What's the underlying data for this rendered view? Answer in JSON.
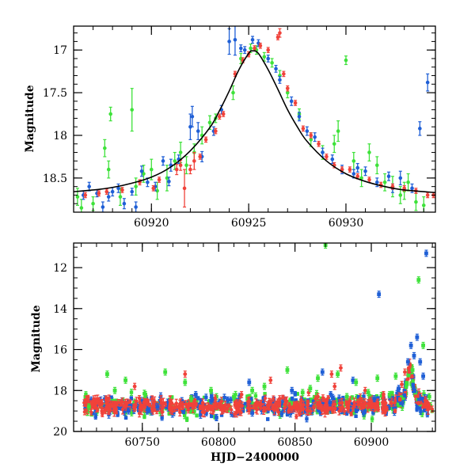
{
  "colors": {
    "blue": "#1f5fd6",
    "red": "#f0423a",
    "green": "#3ee23a",
    "model": "#000000"
  },
  "chart_data": [
    {
      "type": "scatter",
      "panel": "top",
      "title": "",
      "xlabel": "",
      "ylabel": "Magnitude",
      "xlim": [
        60916,
        60934.6
      ],
      "ylim": [
        18.9,
        16.72
      ],
      "y_inverted": true,
      "grid": false,
      "x_ticks": [
        60920,
        60925,
        60930
      ],
      "y_ticks": [
        17,
        17.5,
        18,
        18.5
      ],
      "x_minor_step": 1,
      "y_minor_step": 0.1,
      "model_curve": {
        "name": "",
        "x": [
          60916,
          60917,
          60918,
          60919,
          60920,
          60921,
          60922,
          60923,
          60923.5,
          60924,
          60924.5,
          60925,
          60925.2,
          60925.5,
          60926,
          60926.5,
          60927,
          60927.5,
          60928,
          60929,
          60930,
          60931,
          60932,
          60933,
          60934.6
        ],
        "y": [
          18.66,
          18.64,
          18.61,
          18.56,
          18.49,
          18.37,
          18.18,
          17.91,
          17.71,
          17.48,
          17.23,
          17.04,
          17.01,
          17.04,
          17.23,
          17.46,
          17.7,
          17.9,
          18.07,
          18.3,
          18.45,
          18.54,
          18.6,
          18.64,
          18.67
        ]
      },
      "series": [
        {
          "color": "blue",
          "points": [
            [
              60916.5,
              18.7,
              0.05
            ],
            [
              60917.2,
              18.68,
              0.04
            ],
            [
              60917.8,
              18.72,
              0.05
            ],
            [
              60918.3,
              18.62,
              0.05
            ],
            [
              60918.6,
              18.8,
              0.06
            ],
            [
              60919.0,
              18.66,
              0.04
            ],
            [
              60919.5,
              18.42,
              0.06
            ],
            [
              60919.8,
              18.55,
              0.05
            ],
            [
              60920.2,
              18.6,
              0.05
            ],
            [
              60920.6,
              18.3,
              0.05
            ],
            [
              60921.0,
              18.35,
              0.07
            ],
            [
              60921.4,
              18.28,
              0.05
            ],
            [
              60922.0,
              17.9,
              0.15
            ],
            [
              60922.1,
              17.78,
              0.12
            ],
            [
              60922.4,
              17.95,
              0.1
            ],
            [
              60922.6,
              18.25,
              0.06
            ],
            [
              60923.2,
              17.95,
              0.05
            ],
            [
              60923.6,
              17.7,
              0.05
            ],
            [
              60924.0,
              16.9,
              0.15
            ],
            [
              60924.3,
              16.88,
              0.18
            ],
            [
              60924.8,
              17.0,
              0.04
            ],
            [
              60925.2,
              16.88,
              0.04
            ],
            [
              60925.5,
              16.92,
              0.04
            ],
            [
              60926.0,
              17.1,
              0.04
            ],
            [
              60926.4,
              17.22,
              0.04
            ],
            [
              60926.6,
              17.35,
              0.04
            ],
            [
              60927.2,
              17.6,
              0.05
            ],
            [
              60927.6,
              17.78,
              0.05
            ],
            [
              60928.0,
              17.95,
              0.05
            ],
            [
              60928.4,
              18.02,
              0.05
            ],
            [
              60928.8,
              18.2,
              0.05
            ],
            [
              60929.3,
              18.28,
              0.05
            ],
            [
              60929.8,
              18.4,
              0.05
            ],
            [
              60930.4,
              18.45,
              0.05
            ],
            [
              60931.0,
              18.42,
              0.05
            ],
            [
              60931.6,
              18.55,
              0.05
            ],
            [
              60932.2,
              18.48,
              0.05
            ],
            [
              60932.8,
              18.5,
              0.08
            ],
            [
              60933.4,
              18.62,
              0.05
            ],
            [
              60933.8,
              17.92,
              0.08
            ],
            [
              60934.2,
              17.38,
              0.1
            ],
            [
              60916.8,
              18.6,
              0.05
            ],
            [
              60918.0,
              18.66,
              0.05
            ],
            [
              60920.9,
              18.54,
              0.05
            ],
            [
              60924.6,
              16.98,
              0.04
            ],
            [
              60930.6,
              18.38,
              0.05
            ],
            [
              60932.4,
              18.62,
              0.05
            ],
            [
              60917.5,
              18.84,
              0.06
            ],
            [
              60919.2,
              18.84,
              0.06
            ]
          ]
        },
        {
          "color": "red",
          "points": [
            [
              60916.6,
              18.7,
              0.03
            ],
            [
              60917.3,
              18.68,
              0.03
            ],
            [
              60917.7,
              18.66,
              0.03
            ],
            [
              60918.5,
              18.64,
              0.03
            ],
            [
              60919.4,
              18.55,
              0.03
            ],
            [
              60920.1,
              18.62,
              0.03
            ],
            [
              60920.4,
              18.52,
              0.03
            ],
            [
              60921.3,
              18.4,
              0.06
            ],
            [
              60921.5,
              18.35,
              0.06
            ],
            [
              60921.7,
              18.62,
              0.22
            ],
            [
              60922.0,
              18.4,
              0.05
            ],
            [
              60922.2,
              18.3,
              0.1
            ],
            [
              60922.5,
              18.25,
              0.03
            ],
            [
              60922.8,
              18.05,
              0.03
            ],
            [
              60923.3,
              17.95,
              0.03
            ],
            [
              60923.5,
              17.78,
              0.03
            ],
            [
              60923.7,
              17.75,
              0.03
            ],
            [
              60924.3,
              17.28,
              0.03
            ],
            [
              60924.7,
              17.12,
              0.03
            ],
            [
              60925.0,
              17.05,
              0.03
            ],
            [
              60925.3,
              16.98,
              0.03
            ],
            [
              60925.6,
              16.95,
              0.03
            ],
            [
              60926.0,
              17.0,
              0.03
            ],
            [
              60926.6,
              16.8,
              0.05
            ],
            [
              60926.8,
              17.28,
              0.03
            ],
            [
              60927.0,
              17.45,
              0.03
            ],
            [
              60927.4,
              17.62,
              0.03
            ],
            [
              60927.8,
              17.92,
              0.03
            ],
            [
              60928.2,
              18.0,
              0.03
            ],
            [
              60928.6,
              18.1,
              0.03
            ],
            [
              60929.0,
              18.25,
              0.03
            ],
            [
              60929.4,
              18.35,
              0.03
            ],
            [
              60929.8,
              18.4,
              0.03
            ],
            [
              60930.2,
              18.4,
              0.03
            ],
            [
              60930.6,
              18.48,
              0.03
            ],
            [
              60931.2,
              18.52,
              0.03
            ],
            [
              60931.8,
              18.58,
              0.03
            ],
            [
              60932.4,
              18.6,
              0.03
            ],
            [
              60933.0,
              18.62,
              0.03
            ],
            [
              60933.6,
              18.65,
              0.03
            ],
            [
              60934.2,
              18.7,
              0.03
            ],
            [
              60934.5,
              18.7,
              0.03
            ],
            [
              60926.5,
              16.85,
              0.03
            ]
          ]
        },
        {
          "color": "green",
          "points": [
            [
              60916.2,
              18.72,
              0.1
            ],
            [
              60916.4,
              18.85,
              0.1
            ],
            [
              60917.0,
              18.8,
              0.08
            ],
            [
              60917.6,
              18.15,
              0.1
            ],
            [
              60917.8,
              18.4,
              0.1
            ],
            [
              60917.9,
              17.75,
              0.08
            ],
            [
              60918.4,
              18.72,
              0.1
            ],
            [
              60919.0,
              17.7,
              0.25
            ],
            [
              60919.2,
              18.6,
              0.1
            ],
            [
              60919.6,
              18.45,
              0.1
            ],
            [
              60920.0,
              18.4,
              0.12
            ],
            [
              60920.3,
              18.65,
              0.1
            ],
            [
              60920.8,
              18.5,
              0.15
            ],
            [
              60921.2,
              18.3,
              0.1
            ],
            [
              60921.5,
              18.2,
              0.12
            ],
            [
              60921.8,
              18.35,
              0.1
            ],
            [
              60922.2,
              18.2,
              0.1
            ],
            [
              60922.6,
              18.0,
              0.1
            ],
            [
              60923.0,
              17.85,
              0.08
            ],
            [
              60923.3,
              17.8,
              0.05
            ],
            [
              60924.2,
              17.5,
              0.08
            ],
            [
              60924.6,
              17.1,
              0.06
            ],
            [
              60925.1,
              16.98,
              0.05
            ],
            [
              60925.4,
              17.0,
              0.05
            ],
            [
              60925.8,
              17.08,
              0.05
            ],
            [
              60926.2,
              17.15,
              0.05
            ],
            [
              60926.6,
              17.3,
              0.06
            ],
            [
              60927.0,
              17.5,
              0.06
            ],
            [
              60927.6,
              17.75,
              0.06
            ],
            [
              60928.2,
              18.05,
              0.08
            ],
            [
              60928.8,
              18.2,
              0.08
            ],
            [
              60929.4,
              18.1,
              0.1
            ],
            [
              60929.6,
              17.95,
              0.12
            ],
            [
              60930.0,
              17.12,
              0.05
            ],
            [
              60930.4,
              18.3,
              0.1
            ],
            [
              60930.8,
              18.5,
              0.1
            ],
            [
              60931.2,
              18.2,
              0.1
            ],
            [
              60931.6,
              18.35,
              0.1
            ],
            [
              60932.0,
              18.55,
              0.1
            ],
            [
              60932.4,
              18.6,
              0.12
            ],
            [
              60932.8,
              18.7,
              0.1
            ],
            [
              60933.2,
              18.55,
              0.1
            ],
            [
              60933.6,
              18.78,
              0.1
            ],
            [
              60934.0,
              18.82,
              0.1
            ],
            [
              60933.0,
              18.65,
              0.1
            ]
          ]
        }
      ]
    },
    {
      "type": "scatter",
      "panel": "bottom",
      "title": "",
      "xlabel": "HJD−2400000",
      "ylabel": "Magnitude",
      "xlim": [
        60705,
        60942
      ],
      "ylim": [
        20,
        10.8
      ],
      "y_inverted": true,
      "grid": false,
      "x_ticks": [
        60750,
        60800,
        60850,
        60900
      ],
      "y_ticks": [
        12,
        14,
        16,
        18,
        20
      ],
      "x_minor_step": 10,
      "y_minor_step": 0.5,
      "baseline": {
        "start": 60712,
        "end": 60940,
        "mag": 18.75,
        "scatter": 0.22,
        "n": 420
      },
      "peak": {
        "center": 60925.2,
        "peak_mag": 16.9,
        "base_mag": 18.75,
        "width": 2.5
      },
      "outliers": {
        "blue": [
          [
            60741,
            19.0
          ],
          [
            60760,
            18.8
          ],
          [
            60785,
            18.2
          ],
          [
            60795,
            18.5
          ],
          [
            60820,
            17.6
          ],
          [
            60822,
            19.1
          ],
          [
            60848,
            18.0
          ],
          [
            60873,
            18.6
          ],
          [
            60888,
            17.5
          ],
          [
            60895,
            19.1
          ],
          [
            60905,
            13.3
          ],
          [
            60918,
            17.9
          ],
          [
            60924,
            16.6
          ],
          [
            60926,
            15.8
          ],
          [
            60928,
            16.3
          ],
          [
            60930,
            15.4
          ],
          [
            60932,
            16.6
          ],
          [
            60934,
            17.3
          ],
          [
            60936,
            11.3
          ],
          [
            60912,
            18.3
          ],
          [
            60902,
            18.4
          ],
          [
            60868,
            17.1
          ]
        ],
        "red": [
          [
            60712,
            18.6
          ],
          [
            60722,
            18.7
          ],
          [
            60745,
            17.8
          ],
          [
            60778,
            17.2
          ],
          [
            60815,
            18.2
          ],
          [
            60834,
            17.5
          ],
          [
            60840,
            18.4
          ],
          [
            60859,
            18.1
          ],
          [
            60865,
            18.3
          ],
          [
            60874,
            17.2
          ],
          [
            60876,
            17.8
          ],
          [
            60880,
            16.9
          ],
          [
            60896,
            18.0
          ],
          [
            60908,
            18.2
          ],
          [
            60920,
            17.7
          ],
          [
            60922,
            17.1
          ],
          [
            60937,
            18.6
          ]
        ],
        "green": [
          [
            60715,
            18.8
          ],
          [
            60727,
            17.2
          ],
          [
            60732,
            18.0
          ],
          [
            60739,
            17.5
          ],
          [
            60752,
            18.2
          ],
          [
            60765,
            17.1
          ],
          [
            60778,
            17.6
          ],
          [
            60782,
            18.4
          ],
          [
            60795,
            18.0
          ],
          [
            60810,
            18.3
          ],
          [
            60830,
            17.8
          ],
          [
            60845,
            17.0
          ],
          [
            60855,
            18.1
          ],
          [
            60865,
            17.4
          ],
          [
            60870,
            10.9
          ],
          [
            60878,
            17.2
          ],
          [
            60884,
            18.3
          ],
          [
            60890,
            17.6
          ],
          [
            60898,
            18.1
          ],
          [
            60904,
            17.4
          ],
          [
            60912,
            18.2
          ],
          [
            60916,
            17.3
          ],
          [
            60927,
            17.0
          ],
          [
            60931,
            12.6
          ],
          [
            60934,
            15.8
          ],
          [
            60938,
            18.3
          ],
          [
            60822,
            18.0
          ],
          [
            60860,
            17.9
          ]
        ]
      }
    }
  ]
}
